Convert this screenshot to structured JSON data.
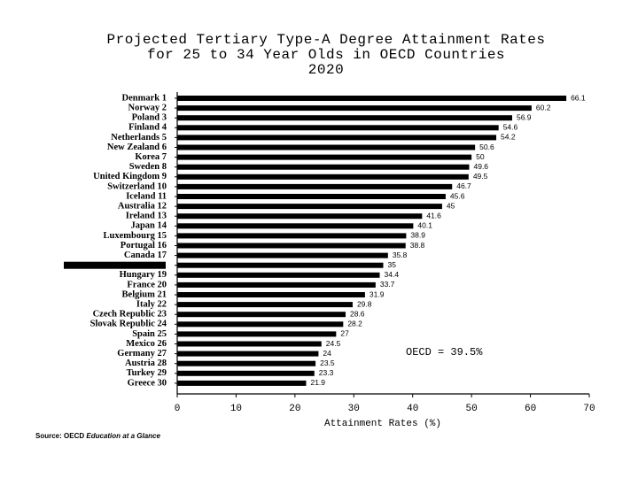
{
  "chart_data": {
    "type": "bar",
    "orientation": "horizontal",
    "title": [
      "Projected Tertiary Type-A Degree Attainment Rates",
      "for 25 to 34 Year Olds in OECD Countries",
      "2020"
    ],
    "categories": [
      "Denmark 1",
      "Norway 2",
      "Poland 3",
      "Finland 4",
      "Netherlands 5",
      "New Zealand 6",
      "Korea 7",
      "Sweden 8",
      "United Kingdom 9",
      "Switzerland 10",
      "Iceland 11",
      "Australia 12",
      "Ireland 13",
      "Japan 14",
      "Luxembourg 15",
      "Portugal 16",
      "Canada 17",
      null,
      "Hungary 19",
      "France 20",
      "Belgium 21",
      "Italy 22",
      "Czech Republic 23",
      "Slovak Republic 24",
      "Spain 25",
      "Mexico 26",
      "Germany 27",
      "Austria 28",
      "Turkey 29",
      "Greece 30"
    ],
    "values": [
      66.1,
      60.2,
      56.9,
      54.6,
      54.2,
      50.6,
      50,
      49.6,
      49.5,
      46.7,
      45.6,
      45,
      41.6,
      40.1,
      38.9,
      38.8,
      35.8,
      35,
      34.4,
      33.7,
      31.9,
      29.8,
      28.6,
      28.2,
      27,
      24.5,
      24,
      23.5,
      23.3,
      21.9
    ],
    "color": "#000000",
    "xlabel": "Attainment Rates (%)",
    "xlim": [
      0,
      70
    ],
    "xticks": [
      0,
      10,
      20,
      30,
      40,
      50,
      60,
      70
    ],
    "annotation": "OECD = 39.5%",
    "source": [
      "Source: OECD",
      "Education at a Glance"
    ]
  }
}
